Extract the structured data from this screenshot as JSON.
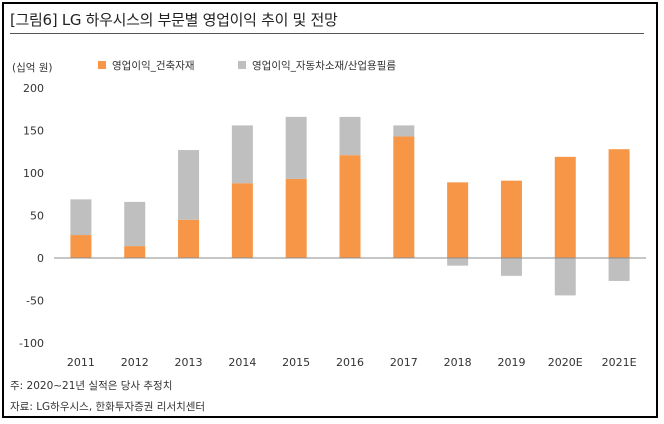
{
  "title": "[그림6]   LG 하우시스의 부문별 영업이익 추이 및 전망",
  "chart_data": {
    "type": "bar",
    "stacked": true,
    "ylabel": "(십억 원)",
    "ylim": [
      -100,
      200
    ],
    "yticks": [
      200,
      150,
      100,
      50,
      0,
      -50,
      -100
    ],
    "categories": [
      "2011",
      "2012",
      "2013",
      "2014",
      "2015",
      "2016",
      "2017",
      "2018",
      "2019",
      "2020E",
      "2021E"
    ],
    "series": [
      {
        "name": "영업이익_건축자재",
        "color": "#f79646",
        "values": [
          27,
          14,
          45,
          88,
          93,
          121,
          143,
          89,
          91,
          119,
          128
        ]
      },
      {
        "name": "영업이익_자동차소재/산업용필름",
        "color": "#bfbfbf",
        "values": [
          42,
          52,
          82,
          68,
          73,
          45,
          13,
          -9,
          -21,
          -44,
          -27
        ]
      }
    ],
    "grid": false,
    "legend_position": "top"
  },
  "footnotes": {
    "note": "주: 2020~21년 실적은 당사 추정치",
    "source": "자료: LG하우시스, 한화투자증권 리서치센터"
  }
}
